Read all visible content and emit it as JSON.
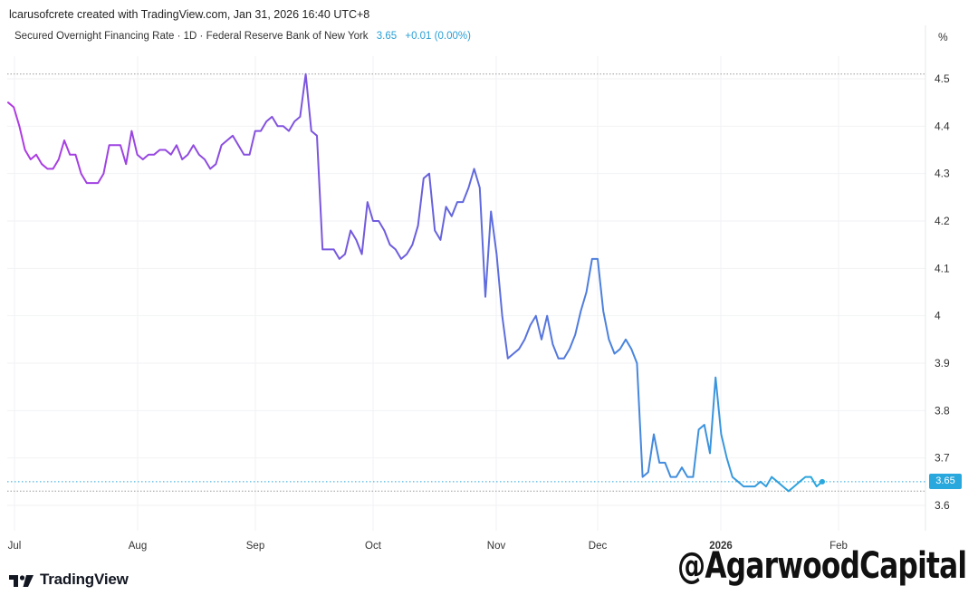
{
  "header": {
    "credit": "lcarusofcrete created with TradingView.com, Jan 31, 2026 16:40 UTC+8",
    "legend_title": "Secured Overnight Financing Rate · 1D · Federal Reserve Bank of New York",
    "legend_value": "3.65",
    "legend_change": "+0.01 (0.00%)",
    "unit": "%"
  },
  "price_badge": "3.65",
  "brand": {
    "name": "TradingView",
    "icon": "tradingview-logo-icon"
  },
  "watermark": "@AgarwoodCapital",
  "colors": {
    "start": "#b03ae3",
    "mid": "#6a5fdd",
    "end": "#29a8dd",
    "badge": "#29a8dd"
  },
  "chart_data": {
    "type": "line",
    "title": "Secured Overnight Financing Rate · 1D · Federal Reserve Bank of New York",
    "ylim": [
      3.58,
      4.56
    ],
    "y_ticks": [
      "4.5",
      "4.4",
      "4.3",
      "4.2",
      "4.1",
      "4",
      "3.9",
      "3.8",
      "3.7",
      "3.6"
    ],
    "x_tick_labels": [
      "Jul",
      "Aug",
      "Sep",
      "Oct",
      "Nov",
      "Dec",
      "2026",
      "Feb"
    ],
    "grid": true,
    "series": [
      {
        "values": [
          4.45,
          4.44,
          4.4,
          4.35,
          4.33,
          4.34,
          4.32,
          4.31,
          4.31,
          4.33,
          4.37,
          4.34,
          4.34,
          4.3,
          4.28,
          4.28,
          4.28,
          4.3,
          4.36,
          4.36,
          4.36,
          4.32,
          4.39,
          4.34,
          4.33,
          4.34,
          4.34,
          4.35,
          4.35,
          4.34,
          4.36,
          4.33,
          4.34,
          4.36,
          4.34,
          4.33,
          4.31,
          4.32,
          4.36,
          4.37,
          4.38,
          4.36,
          4.34,
          4.34,
          4.39,
          4.39,
          4.41,
          4.42,
          4.4,
          4.4,
          4.39,
          4.41,
          4.42,
          4.51,
          4.39,
          4.38,
          4.14,
          4.14,
          4.14,
          4.12,
          4.13,
          4.18,
          4.16,
          4.13,
          4.24,
          4.2,
          4.2,
          4.18,
          4.15,
          4.14,
          4.12,
          4.13,
          4.15,
          4.19,
          4.29,
          4.3,
          4.18,
          4.16,
          4.23,
          4.21,
          4.24,
          4.24,
          4.27,
          4.31,
          4.27,
          4.04,
          4.22,
          4.13,
          4.0,
          3.91,
          3.92,
          3.93,
          3.95,
          3.98,
          4.0,
          3.95,
          4.0,
          3.94,
          3.91,
          3.91,
          3.93,
          3.96,
          4.01,
          4.05,
          4.12,
          4.12,
          4.01,
          3.95,
          3.92,
          3.93,
          3.95,
          3.93,
          3.9,
          3.66,
          3.67,
          3.75,
          3.69,
          3.69,
          3.66,
          3.66,
          3.68,
          3.66,
          3.66,
          3.76,
          3.77,
          3.71,
          3.87,
          3.75,
          3.7,
          3.66,
          3.65,
          3.64,
          3.64,
          3.64,
          3.65,
          3.64,
          3.66,
          3.65,
          3.64,
          3.63,
          3.64,
          3.65,
          3.66,
          3.66,
          3.64,
          3.65
        ]
      }
    ],
    "last_value": 3.65,
    "last_value_label": "3.65"
  }
}
